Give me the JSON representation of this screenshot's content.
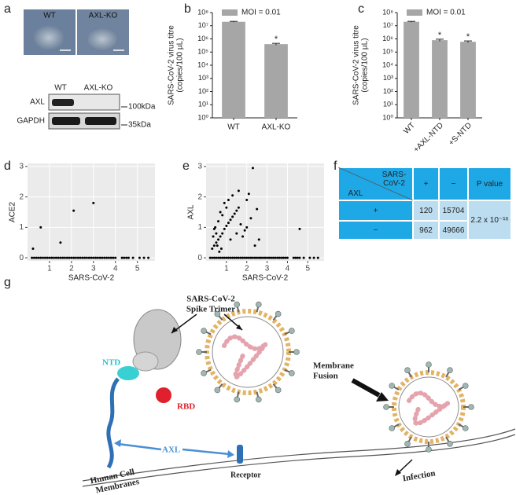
{
  "panel_labels": [
    "a",
    "b",
    "c",
    "d",
    "e",
    "f",
    "g"
  ],
  "panel_a": {
    "image_labels": [
      "WT",
      "AXL-KO"
    ],
    "blot_lanes": [
      "WT",
      "AXL-KO"
    ],
    "blot_rows": [
      "AXL",
      "GAPDH"
    ],
    "markers": [
      "100kDa",
      "35kDa"
    ]
  },
  "chart_data": [
    {
      "type": "bar",
      "yscale": "log",
      "ylabel": [
        "SARS-CoV-2 virus titre",
        "(copies/100 µL)"
      ],
      "categories": [
        "WT",
        "AXL-KO"
      ],
      "values": [
        20000000,
        400000
      ],
      "errors": [
        1500000,
        60000
      ],
      "color": "#a6a6a6",
      "legend": "MOI = 0.01",
      "legend_position": "top-left",
      "annotations": [
        {
          "category": "AXL-KO",
          "text": "*"
        }
      ],
      "ylim": [
        1,
        100000000
      ],
      "yticks": [
        {
          "value": 1,
          "label": "10⁰"
        },
        {
          "value": 10,
          "label": "10¹"
        },
        {
          "value": 100,
          "label": "10²"
        },
        {
          "value": 1000,
          "label": "10³"
        },
        {
          "value": 10000,
          "label": "10⁴"
        },
        {
          "value": 100000,
          "label": "10⁵"
        },
        {
          "value": 1000000,
          "label": "10⁶"
        },
        {
          "value": 10000000,
          "label": "10⁷"
        },
        {
          "value": 100000000,
          "label": "10⁸"
        }
      ]
    },
    {
      "type": "bar",
      "yscale": "log",
      "ylabel": [
        "SARS-CoV-2 virus titre",
        "(copies/100 µL)"
      ],
      "categories": [
        "WT",
        "+AXL-NTD",
        "+S-NTD"
      ],
      "values": [
        20000000,
        800000,
        600000
      ],
      "errors": [
        1500000,
        150000,
        100000
      ],
      "color": "#a6a6a6",
      "legend": "MOI = 0.01",
      "legend_position": "top-left",
      "annotations": [
        {
          "category": "+AXL-NTD",
          "text": "*"
        },
        {
          "category": "+S-NTD",
          "text": "*"
        }
      ],
      "ylim": [
        1,
        100000000
      ],
      "yticks": [
        {
          "value": 1,
          "label": "10⁰"
        },
        {
          "value": 10,
          "label": "10¹"
        },
        {
          "value": 100,
          "label": "10²"
        },
        {
          "value": 1000,
          "label": "10³"
        },
        {
          "value": 10000,
          "label": "10⁴"
        },
        {
          "value": 100000,
          "label": "10⁵"
        },
        {
          "value": 1000000,
          "label": "10⁶"
        },
        {
          "value": 10000000,
          "label": "10⁷"
        },
        {
          "value": 100000000,
          "label": "10⁸"
        }
      ]
    },
    {
      "type": "scatter",
      "xlabel": "SARS-CoV-2",
      "ylabel": "ACE2",
      "grid": true,
      "color": "#000000",
      "x": [
        0.25,
        0.6,
        1.5,
        2.1,
        3.0,
        0.2,
        0.3,
        0.4,
        0.5,
        0.6,
        0.7,
        0.8,
        0.9,
        1.0,
        1.1,
        1.2,
        1.3,
        1.4,
        1.5,
        1.6,
        1.7,
        1.8,
        1.9,
        2.0,
        2.1,
        2.2,
        2.3,
        2.4,
        2.5,
        2.6,
        2.7,
        2.8,
        2.9,
        3.0,
        3.1,
        3.2,
        3.3,
        3.4,
        3.5,
        3.6,
        3.7,
        3.8,
        3.9,
        4.0,
        4.3,
        4.4,
        4.5,
        4.6,
        4.8,
        5.1,
        5.3,
        5.5
      ],
      "values": [
        0.3,
        1.0,
        0.5,
        1.55,
        1.8,
        0,
        0,
        0,
        0,
        0,
        0,
        0,
        0,
        0,
        0,
        0,
        0,
        0,
        0,
        0,
        0,
        0,
        0,
        0,
        0,
        0,
        0,
        0,
        0,
        0,
        0,
        0,
        0,
        0,
        0,
        0,
        0,
        0,
        0,
        0,
        0,
        0,
        0,
        0,
        0,
        0,
        0,
        0,
        0,
        0,
        0,
        0
      ],
      "xlim": [
        0,
        5.8
      ],
      "ylim": [
        -0.1,
        3.1
      ],
      "xticks": [
        1,
        2,
        3,
        4,
        5
      ],
      "yticks": [
        0,
        1,
        2,
        3
      ]
    },
    {
      "type": "scatter",
      "xlabel": "SARS-CoV-2",
      "ylabel": "AXL",
      "grid": true,
      "color": "#000000",
      "x": [
        0.3,
        0.4,
        0.5,
        0.6,
        0.7,
        0.8,
        0.9,
        1.0,
        1.1,
        1.2,
        1.3,
        1.4,
        1.5,
        1.6,
        0.4,
        0.5,
        0.6,
        0.7,
        0.8,
        0.9,
        1.0,
        1.1,
        0.55,
        0.75,
        1.2,
        1.5,
        1.6,
        1.7,
        1.8,
        1.9,
        2.0,
        2.0,
        2.1,
        2.2,
        2.3,
        2.4,
        2.5,
        2.6,
        0.35,
        0.45,
        1.3,
        0.65,
        4.6,
        0.2,
        0.3,
        0.4,
        0.5,
        0.6,
        0.7,
        0.8,
        0.9,
        1.0,
        1.1,
        1.2,
        1.3,
        1.4,
        1.5,
        1.6,
        1.7,
        1.8,
        1.9,
        2.0,
        2.1,
        2.2,
        2.3,
        2.4,
        2.5,
        2.6,
        2.7,
        2.8,
        2.9,
        3.0,
        3.1,
        3.2,
        3.3,
        3.4,
        3.5,
        3.6,
        3.7,
        3.8,
        3.9,
        4.0,
        4.3,
        4.4,
        4.5,
        4.6,
        4.8,
        5.1,
        5.3,
        5.5
      ],
      "values": [
        0.3,
        0.4,
        0.5,
        0.6,
        0.7,
        0.8,
        0.95,
        1.05,
        1.15,
        1.25,
        1.35,
        1.45,
        1.55,
        1.65,
        0.95,
        0.8,
        1.2,
        1.5,
        1.4,
        1.8,
        1.65,
        1.9,
        0.4,
        0.3,
        0.6,
        0.8,
        2.2,
        1.1,
        0.7,
        0.9,
        1.0,
        1.9,
        2.1,
        1.3,
        2.95,
        0.4,
        1.6,
        0.6,
        0.7,
        1.0,
        2.05,
        0.2,
        0.95,
        0,
        0,
        0,
        0,
        0,
        0,
        0,
        0,
        0,
        0,
        0,
        0,
        0,
        0,
        0,
        0,
        0,
        0,
        0,
        0,
        0,
        0,
        0,
        0,
        0,
        0,
        0,
        0,
        0,
        0,
        0,
        0,
        0,
        0,
        0,
        0,
        0,
        0,
        0,
        0,
        0,
        0,
        0,
        0,
        0,
        0,
        0
      ],
      "xlim": [
        0,
        5.8
      ],
      "ylim": [
        -0.1,
        3.1
      ],
      "xticks": [
        1,
        2,
        3,
        4,
        5
      ],
      "yticks": [
        0,
        1,
        2,
        3
      ]
    }
  ],
  "table": {
    "corner": [
      "SARS-CoV-2",
      "AXL"
    ],
    "columns": [
      "+",
      "−",
      "P value"
    ],
    "rows": [
      [
        "+",
        120,
        15704
      ],
      [
        "−",
        962,
        49666
      ]
    ],
    "p_value": "2.2 x 10⁻¹⁶"
  },
  "diagram": {
    "spike_title": [
      "SARS-CoV-2",
      "Spike Trimer"
    ],
    "ntd": "NTD",
    "rbd": "RBD",
    "axl": "AXL",
    "receptor": "Receptor",
    "fusion": [
      "Membrane",
      "Fusion"
    ],
    "membranes": [
      "Human Cell",
      "Membranes"
    ],
    "infection": "Infection"
  }
}
